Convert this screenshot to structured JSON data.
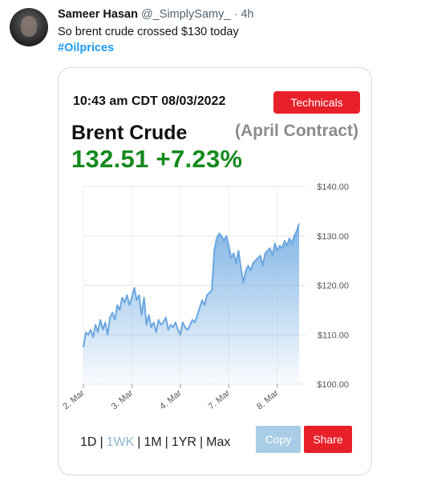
{
  "tweet": {
    "author_name": "Sameer Hasan",
    "handle": "@_SimplySamy_",
    "separator": "·",
    "time": "4h",
    "text": "So brent crude crossed $130 today",
    "hashtag": "#Oilprices"
  },
  "card": {
    "timestamp": "10:43 am CDT 08/03/2022",
    "technicals_label": "Technicals",
    "title": "Brent Crude",
    "contract": "(April Contract)",
    "price": "132.51",
    "change": "+7.23%",
    "ranges": [
      "1D",
      "1WK",
      "1M",
      "1YR",
      "Max"
    ],
    "active_range": "1WK",
    "copy_label": "Copy",
    "share_label": "Share",
    "colors": {
      "accent_red": "#e8202a",
      "price_green": "#168a1e",
      "line_blue": "#6aa7e0",
      "copy_blue": "#a9cde6"
    }
  },
  "chart_data": {
    "type": "area",
    "title": "",
    "xlabel": "",
    "ylabel": "",
    "ylim": [
      100,
      140
    ],
    "y_ticks": [
      "$140.00",
      "$130.00",
      "$120.00",
      "$110.00",
      "$100.00"
    ],
    "y_tick_values": [
      140,
      130,
      120,
      110,
      100
    ],
    "x_ticks": [
      "2. Mar",
      "3. Mar",
      "4. Mar",
      "7. Mar",
      "8. Mar"
    ],
    "x_tick_index": [
      0,
      1,
      2,
      3,
      4
    ],
    "grid": true,
    "series": [
      {
        "x": [
          0,
          0.05,
          0.1,
          0.15,
          0.2,
          0.25,
          0.3,
          0.35,
          0.4,
          0.45,
          0.5,
          0.55,
          0.6,
          0.65,
          0.7,
          0.75,
          0.8,
          0.85,
          0.9,
          0.95,
          1.0,
          1.05,
          1.1,
          1.15,
          1.2,
          1.25,
          1.3,
          1.35,
          1.4,
          1.45,
          1.5,
          1.55,
          1.6,
          1.65,
          1.7,
          1.75,
          1.8,
          1.85,
          1.9,
          1.95,
          2.0,
          2.05,
          2.1,
          2.15,
          2.2,
          2.25,
          2.3,
          2.35,
          2.4,
          2.45,
          2.5,
          2.55,
          2.6,
          2.65,
          2.7,
          2.75,
          2.8,
          2.85,
          2.9,
          2.95,
          3.0,
          3.05,
          3.1,
          3.15,
          3.2,
          3.25,
          3.3,
          3.35,
          3.4,
          3.45,
          3.5,
          3.55,
          3.6,
          3.65,
          3.7,
          3.75,
          3.8,
          3.85,
          3.9,
          3.95,
          4.0,
          4.05,
          4.1,
          4.15,
          4.2,
          4.25,
          4.3,
          4.35,
          4.4,
          4.45
        ],
        "values": [
          107.5,
          110.5,
          110.0,
          111.0,
          109.5,
          112.0,
          110.5,
          113.0,
          111.0,
          112.5,
          110.0,
          113.5,
          114.5,
          113.0,
          116.0,
          115.0,
          117.5,
          116.5,
          118.0,
          116.0,
          117.5,
          119.5,
          117.0,
          118.0,
          114.0,
          117.5,
          112.0,
          114.0,
          111.5,
          112.5,
          110.5,
          113.0,
          112.0,
          112.5,
          113.5,
          111.0,
          112.0,
          111.5,
          112.5,
          111.0,
          110.0,
          112.5,
          111.5,
          111.0,
          112.0,
          113.0,
          112.5,
          114.0,
          115.5,
          117.0,
          116.0,
          118.0,
          118.5,
          119.0,
          127.0,
          129.5,
          130.5,
          130.0,
          129.0,
          130.0,
          128.0,
          125.5,
          126.5,
          124.5,
          127.0,
          123.5,
          120.5,
          123.0,
          124.0,
          123.0,
          124.5,
          125.0,
          125.5,
          126.0,
          124.0,
          126.5,
          127.0,
          127.5,
          126.0,
          128.5,
          127.0,
          128.0,
          127.5,
          129.0,
          128.0,
          129.5,
          128.5,
          130.0,
          131.0,
          132.51
        ]
      }
    ]
  }
}
